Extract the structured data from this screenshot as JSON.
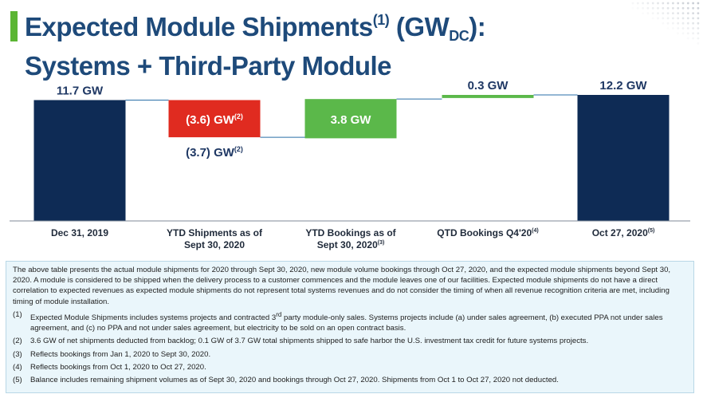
{
  "header": {
    "title_main": "Expected Module Shipments",
    "title_sup": "(1)",
    "title_unit_open": " (GW",
    "title_unit_sub": "DC",
    "title_unit_close": "):",
    "title_line2": "Systems + Third-Party Module",
    "accent_color": "#5bb533",
    "title_color": "#1e4a7a"
  },
  "chart_data": {
    "type": "bar",
    "subtype": "waterfall",
    "unit": "GW",
    "categories": [
      {
        "label": "Dec 31, 2019",
        "sup": ""
      },
      {
        "label": "YTD Shipments as of Sept 30, 2020",
        "sup": ""
      },
      {
        "label": "YTD Bookings as of Sept 30, 2020",
        "sup": "(3)"
      },
      {
        "label": "QTD Bookings Q4'20",
        "sup": "(4)"
      },
      {
        "label": "Oct 27, 2020",
        "sup": "(5)"
      }
    ],
    "bars": [
      {
        "kind": "total",
        "start": 0,
        "end": 11.7,
        "label": "11.7 GW",
        "label_sup": "",
        "color": "#0e2b55"
      },
      {
        "kind": "decrease",
        "start": 11.7,
        "end": 8.1,
        "label": "(3.6) GW",
        "label_sup": "(2)",
        "color": "#e02b20"
      },
      {
        "kind": "increase",
        "start": 8.0,
        "end": 11.8,
        "label": "3.8 GW",
        "label_sup": "",
        "color": "#5bb84a"
      },
      {
        "kind": "increase",
        "start": 11.9,
        "end": 12.2,
        "label": "0.3 GW",
        "label_sup": "",
        "color": "#5bb84a"
      },
      {
        "kind": "total",
        "start": 0,
        "end": 12.2,
        "label": "12.2 GW",
        "label_sup": "",
        "color": "#0e2b55"
      }
    ],
    "annotation": {
      "text": "(3.7) GW",
      "sup": "(2)",
      "value": -3.7
    },
    "ylim": [
      0,
      12.2
    ]
  },
  "footnotes": {
    "intro": "The above table presents the actual module shipments for 2020 through Sept 30, 2020, new module volume bookings through Oct 27, 2020, and the expected module shipments beyond Sept 30, 2020. A module is considered to be shipped when the delivery process to a customer commences and the module leaves one of our facilities. Expected module shipments do not have a direct correlation to expected revenues as expected module shipments do not represent total systems revenues and do not consider the timing of when all revenue recognition criteria are met, including timing of module installation.",
    "items": [
      {
        "num": "(1)",
        "text_a": "Expected Module Shipments includes systems projects and contracted 3",
        "text_sup": "rd",
        "text_b": " party module-only sales. Systems projects include (a) under sales agreement, (b) executed PPA not under sales agreement, and (c) no PPA and not under sales agreement, but electricity to be sold on an open contract basis."
      },
      {
        "num": "(2)",
        "text_a": "3.6 GW of net shipments deducted from backlog; 0.1 GW of 3.7 GW total shipments shipped to safe harbor the U.S. investment tax credit for future systems projects.",
        "text_sup": "",
        "text_b": ""
      },
      {
        "num": "(3)",
        "text_a": "Reflects bookings from Jan 1, 2020 to Sept 30, 2020.",
        "text_sup": "",
        "text_b": ""
      },
      {
        "num": "(4)",
        "text_a": "Reflects bookings from Oct 1, 2020 to Oct 27, 2020.",
        "text_sup": "",
        "text_b": ""
      },
      {
        "num": "(5)",
        "text_a": "Balance includes remaining shipment volumes as of Sept 30, 2020 and bookings through Oct 27, 2020.  Shipments from Oct 1 to Oct 27, 2020 not deducted.",
        "text_sup": "",
        "text_b": ""
      }
    ]
  }
}
